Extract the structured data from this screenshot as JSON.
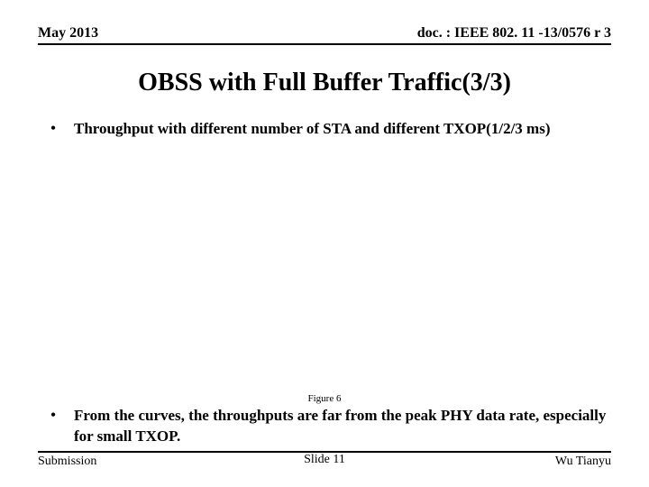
{
  "header": {
    "left": "May 2013",
    "right": "doc. : IEEE 802. 11 -13/0576 r 3"
  },
  "title": "OBSS with Full Buffer Traffic(3/3)",
  "bullets": [
    {
      "text": "Throughput with different number of STA and different TXOP(1/2/3 ms)"
    },
    {
      "text": "From the curves, the throughputs are far from the peak PHY data rate,  especially for small TXOP."
    }
  ],
  "figure_caption": "Figure 6",
  "footer": {
    "left": "Submission",
    "center": "Slide 11",
    "right": "Wu Tianyu"
  }
}
